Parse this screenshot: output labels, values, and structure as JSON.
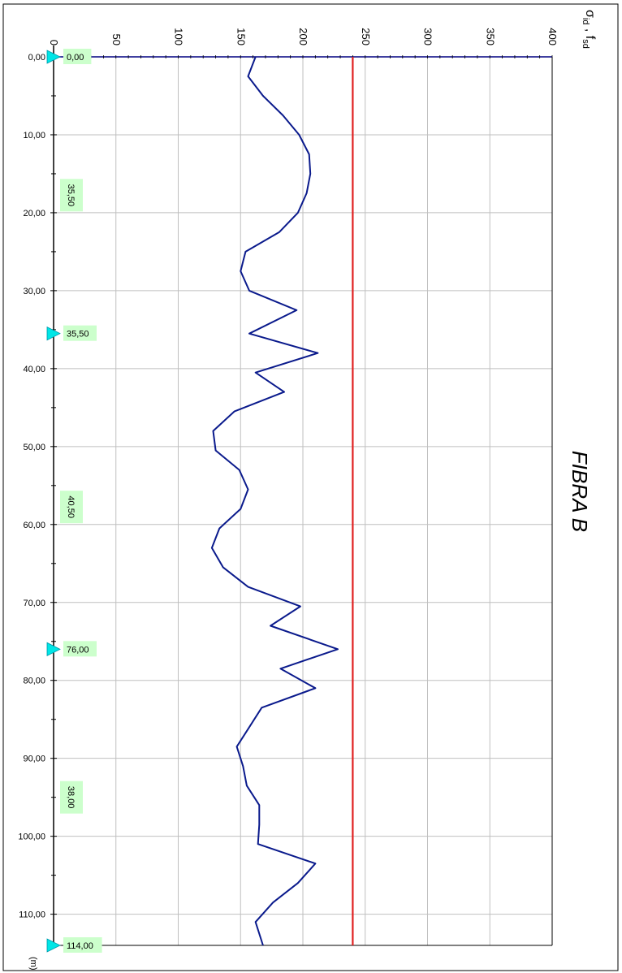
{
  "chart_data": {
    "type": "line",
    "title": "FIBRA B",
    "ylabel": "σid , fsd",
    "ylabel_main": "σ",
    "ylabel_sub1": "id",
    "ylabel_sep": " , f",
    "ylabel_sub2": "sd",
    "xlabel": "(m)",
    "x_axis_orientation": "vertical",
    "xlim": [
      0,
      114
    ],
    "ylim": [
      0,
      400
    ],
    "x_ticks": [
      0,
      10,
      20,
      30,
      40,
      50,
      60,
      70,
      80,
      90,
      100,
      110
    ],
    "x_tick_labels": [
      "0,00",
      "10,00",
      "20,00",
      "30,00",
      "40,00",
      "50,00",
      "60,00",
      "70,00",
      "80,00",
      "90,00",
      "100,00",
      "110,00"
    ],
    "y_ticks": [
      0,
      50,
      100,
      150,
      200,
      250,
      300,
      350,
      400
    ],
    "y_tick_labels": [
      "0",
      "50",
      "100",
      "150",
      "200",
      "250",
      "300",
      "350",
      "400"
    ],
    "grid": true,
    "series": [
      {
        "color": "#0a1a8c",
        "x": [
          0,
          2.5,
          5,
          7.5,
          10,
          12.5,
          15,
          17.5,
          20,
          22.5,
          25,
          27.5,
          30,
          32.5,
          35.5,
          38,
          40.5,
          43,
          45.5,
          48,
          50.5,
          53,
          55.5,
          58,
          60.5,
          63,
          65.5,
          68,
          70.5,
          73,
          76,
          78.5,
          81,
          83.5,
          86,
          88.5,
          91,
          93.5,
          96,
          98.5,
          101,
          103.5,
          106,
          108.5,
          111,
          114
        ],
        "y": [
          162,
          156,
          168,
          184,
          197,
          205,
          206,
          203,
          196,
          181,
          154,
          150,
          157,
          195,
          157,
          212,
          162,
          185,
          145,
          128,
          130,
          149,
          156,
          150,
          133,
          127,
          136,
          156,
          198,
          174,
          228,
          182,
          210,
          167,
          157,
          147,
          152,
          155,
          165,
          165,
          164,
          210,
          196,
          176,
          162,
          168
        ]
      },
      {
        "color": "#e02020",
        "x": [
          0,
          114
        ],
        "y": [
          240,
          240
        ]
      }
    ],
    "segment_markers": [
      0,
      35.5,
      76,
      114
    ],
    "segment_marker_labels": [
      "0,00",
      "35,50",
      "76,00",
      "114,00"
    ],
    "segment_lengths": [
      {
        "at": 17.75,
        "label": "35,50"
      },
      {
        "at": 57.75,
        "label": "40,50"
      },
      {
        "at": 95,
        "label": "38,00"
      }
    ],
    "colors": {
      "axis": "#000080",
      "grid": "#bfbfbf",
      "label_box": "#ccffcc",
      "marker": "#00e6e6"
    }
  }
}
